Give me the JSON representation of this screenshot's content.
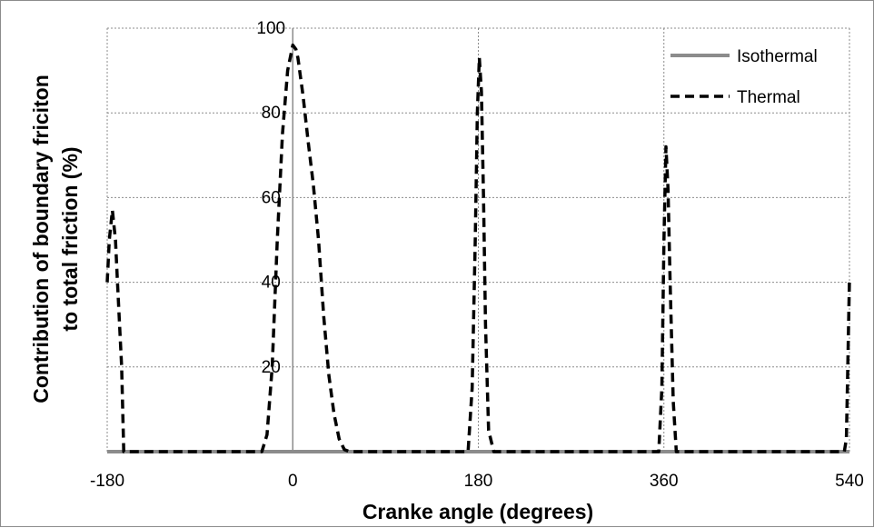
{
  "chart_data": {
    "type": "line",
    "title": "",
    "xlabel": "Cranke angle (degrees)",
    "ylabel_lines": [
      "Contribution of boundary  friciton",
      "to total friction (%)"
    ],
    "xlim": [
      -180,
      540
    ],
    "ylim": [
      0,
      100
    ],
    "x_ticks": [
      -180,
      0,
      180,
      360,
      540
    ],
    "y_ticks": [
      20,
      40,
      60,
      80,
      100
    ],
    "grid": true,
    "legend_position": "top-right",
    "series": [
      {
        "name": "Isothermal",
        "style": "solid",
        "color": "#8c8c8c",
        "x": [
          -180,
          540
        ],
        "y": [
          0,
          0
        ]
      },
      {
        "name": "Thermal",
        "style": "dashed",
        "color": "#000000",
        "x": [
          -180,
          -178,
          -175,
          -172,
          -170,
          -166,
          -164,
          -160,
          -120,
          -60,
          -30,
          -25,
          -20,
          -15,
          -10,
          -5,
          0,
          3,
          5,
          10,
          15,
          20,
          25,
          30,
          35,
          40,
          45,
          50,
          55,
          60,
          100,
          170,
          174,
          177,
          179,
          181,
          183,
          185,
          187,
          190,
          195,
          230,
          300,
          355,
          358,
          360,
          362,
          364,
          366,
          369,
          372,
          380,
          500,
          535,
          537,
          538,
          540
        ],
        "y": [
          40,
          50,
          57,
          50,
          40,
          20,
          0,
          0,
          0,
          0,
          0,
          4,
          20,
          50,
          75,
          90,
          96,
          95,
          93,
          84,
          73,
          63,
          50,
          32,
          18,
          9,
          3,
          0.5,
          0,
          0,
          0,
          0,
          15,
          50,
          80,
          93,
          85,
          60,
          30,
          5,
          0,
          0,
          0,
          0,
          15,
          50,
          72,
          62,
          40,
          12,
          0,
          0,
          0,
          0,
          3,
          15,
          41
        ]
      }
    ]
  }
}
